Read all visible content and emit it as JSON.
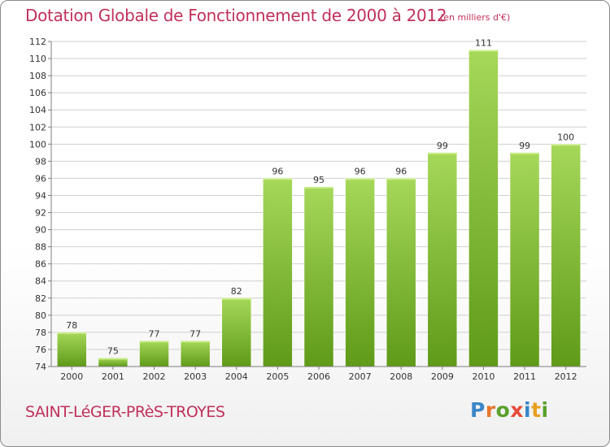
{
  "header": {
    "title": "Dotation Globale de Fonctionnement de 2000 à 2012",
    "unit_note": "(en milliers d'€)"
  },
  "footer": {
    "commune": "SAINT-LéGER-PRèS-TROYES",
    "logo": {
      "text": "Proxiti",
      "letter_colors": [
        "#3a86c8",
        "#e8762d",
        "#5aa02c",
        "#e84a3a",
        "#3a86c8",
        "#e8a020",
        "#5aa02c"
      ]
    }
  },
  "colors": {
    "title": "#c0305a",
    "bar_light": "#a6d85a",
    "bar_dark": "#5f9a18",
    "axis": "#7f7f7f",
    "grid": "#cfcfcf"
  },
  "chart_data": {
    "type": "bar",
    "title": "Dotation Globale de Fonctionnement de 2000 à 2012",
    "subtitle": "(en milliers d'€)",
    "xlabel": "",
    "ylabel": "",
    "categories": [
      "2000",
      "2001",
      "2002",
      "2003",
      "2004",
      "2005",
      "2006",
      "2007",
      "2008",
      "2009",
      "2010",
      "2011",
      "2012"
    ],
    "values": [
      78,
      75,
      77,
      77,
      82,
      96,
      95,
      96,
      96,
      99,
      111,
      99,
      100
    ],
    "ylim": [
      74,
      112
    ],
    "yticks": [
      74,
      76,
      78,
      80,
      82,
      84,
      86,
      88,
      90,
      92,
      94,
      96,
      98,
      100,
      102,
      104,
      106,
      108,
      110,
      112
    ],
    "grid": true,
    "data_labels": true,
    "legend": "none"
  }
}
